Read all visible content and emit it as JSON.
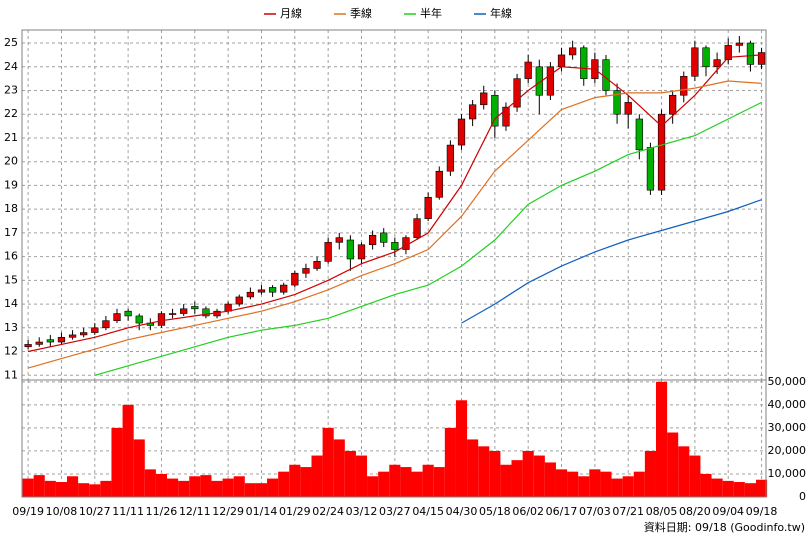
{
  "chart_data": [
    {
      "type": "candlestick",
      "x": [
        0,
        1,
        2,
        3,
        4,
        5,
        6,
        7,
        8,
        9,
        10,
        11,
        12,
        13,
        14,
        15,
        16,
        17,
        18,
        19,
        20,
        21,
        22,
        23,
        24,
        25,
        26,
        27,
        28,
        29,
        30,
        31,
        32,
        33,
        34,
        35,
        36,
        37,
        38,
        39,
        40,
        41,
        42,
        43,
        44,
        45,
        46,
        47,
        48,
        49,
        50,
        51,
        52,
        53,
        54,
        55,
        56,
        57,
        58,
        59,
        60,
        61,
        62,
        63,
        64,
        65,
        66
      ],
      "open": [
        12.2,
        12.3,
        12.5,
        12.4,
        12.6,
        12.7,
        12.8,
        13.0,
        13.3,
        13.7,
        13.5,
        13.2,
        13.1,
        13.6,
        13.6,
        13.9,
        13.8,
        13.5,
        13.7,
        14.0,
        14.3,
        14.5,
        14.7,
        14.5,
        14.8,
        15.3,
        15.5,
        15.8,
        16.6,
        16.7,
        15.9,
        16.5,
        17.0,
        16.6,
        16.3,
        16.8,
        17.6,
        18.5,
        19.6,
        20.7,
        21.8,
        22.4,
        22.8,
        21.5,
        22.3,
        23.5,
        24.0,
        22.8,
        24.0,
        24.5,
        24.8,
        23.5,
        24.3,
        23.0,
        22.0,
        21.8,
        20.6,
        18.8,
        22.0,
        22.8,
        23.6,
        24.8,
        24.0,
        24.3,
        24.9,
        25.0,
        24.1
      ],
      "high": [
        12.5,
        12.6,
        12.7,
        12.8,
        12.9,
        13.0,
        13.2,
        13.5,
        13.8,
        13.8,
        13.6,
        13.4,
        13.7,
        13.8,
        14.0,
        14.1,
        13.9,
        13.8,
        14.1,
        14.4,
        14.7,
        14.8,
        14.8,
        14.9,
        15.4,
        15.7,
        16.0,
        16.8,
        17.0,
        16.9,
        16.6,
        17.1,
        17.2,
        16.8,
        16.9,
        17.8,
        18.7,
        19.8,
        20.9,
        22.0,
        22.6,
        23.2,
        23.0,
        22.5,
        23.7,
        24.5,
        24.3,
        24.2,
        24.8,
        25.1,
        24.9,
        24.6,
        24.5,
        23.3,
        22.8,
        22.0,
        20.8,
        22.2,
        23.0,
        23.8,
        25.1,
        24.9,
        24.6,
        25.2,
        25.3,
        25.1,
        24.8
      ],
      "low": [
        12.1,
        12.2,
        12.2,
        12.3,
        12.5,
        12.6,
        12.7,
        12.9,
        13.2,
        13.3,
        12.9,
        12.9,
        13.0,
        13.4,
        13.5,
        13.6,
        13.4,
        13.4,
        13.6,
        13.9,
        14.2,
        14.4,
        14.3,
        14.4,
        14.7,
        15.1,
        15.4,
        15.7,
        16.3,
        15.4,
        15.7,
        16.3,
        16.4,
        16.0,
        16.1,
        16.7,
        17.5,
        18.4,
        19.4,
        20.5,
        21.5,
        22.2,
        21.0,
        21.3,
        22.1,
        23.3,
        22.0,
        22.6,
        23.8,
        24.3,
        23.2,
        23.3,
        22.8,
        21.6,
        21.4,
        20.1,
        18.6,
        18.6,
        21.6,
        22.5,
        23.4,
        23.6,
        23.7,
        24.1,
        24.6,
        23.8,
        23.9
      ],
      "close": [
        12.3,
        12.4,
        12.4,
        12.6,
        12.7,
        12.8,
        13.0,
        13.3,
        13.6,
        13.5,
        13.2,
        13.1,
        13.6,
        13.6,
        13.8,
        13.8,
        13.5,
        13.7,
        14.0,
        14.3,
        14.5,
        14.6,
        14.5,
        14.8,
        15.3,
        15.5,
        15.8,
        16.6,
        16.8,
        15.9,
        16.5,
        16.9,
        16.6,
        16.3,
        16.8,
        17.6,
        18.5,
        19.6,
        20.7,
        21.8,
        22.4,
        22.9,
        21.5,
        22.3,
        23.5,
        24.2,
        22.8,
        24.0,
        24.5,
        24.8,
        23.5,
        24.3,
        23.0,
        22.0,
        22.5,
        20.5,
        18.8,
        22.0,
        22.8,
        23.6,
        24.8,
        24.0,
        24.3,
        24.9,
        25.0,
        24.1,
        24.6
      ],
      "up_color": "#e00000",
      "down_color": "#00b000",
      "series": [
        {
          "name": "月線",
          "color": "#d00000",
          "x": [
            0,
            3,
            6,
            9,
            12,
            15,
            18,
            21,
            24,
            27,
            30,
            33,
            36,
            39,
            42,
            45,
            48,
            51,
            54,
            57,
            60,
            63,
            66
          ],
          "values": [
            12.0,
            12.3,
            12.6,
            13.0,
            13.3,
            13.5,
            13.7,
            14.0,
            14.4,
            15.0,
            15.7,
            16.2,
            17.0,
            19.0,
            21.8,
            23.0,
            24.0,
            23.9,
            22.8,
            21.5,
            22.8,
            24.4,
            24.5
          ]
        },
        {
          "name": "季線",
          "color": "#e07020",
          "x": [
            0,
            3,
            6,
            9,
            12,
            15,
            18,
            21,
            24,
            27,
            30,
            33,
            36,
            39,
            42,
            45,
            48,
            51,
            54,
            57,
            60,
            63,
            66
          ],
          "values": [
            11.3,
            11.7,
            12.1,
            12.5,
            12.8,
            13.1,
            13.4,
            13.7,
            14.1,
            14.6,
            15.2,
            15.7,
            16.3,
            17.7,
            19.6,
            20.9,
            22.2,
            22.7,
            22.9,
            22.9,
            23.1,
            23.4,
            23.3
          ]
        },
        {
          "name": "半年",
          "color": "#20d020",
          "x": [
            6,
            9,
            12,
            15,
            18,
            21,
            24,
            27,
            30,
            33,
            36,
            39,
            42,
            45,
            48,
            51,
            54,
            57,
            60,
            63,
            66
          ],
          "values": [
            11.0,
            11.4,
            11.8,
            12.2,
            12.6,
            12.9,
            13.1,
            13.4,
            13.9,
            14.4,
            14.8,
            15.6,
            16.7,
            18.2,
            19.0,
            19.6,
            20.3,
            20.7,
            21.1,
            21.8,
            22.5
          ]
        },
        {
          "name": "年線",
          "color": "#1060c0",
          "x": [
            39,
            42,
            45,
            48,
            51,
            54,
            57,
            60,
            63,
            66
          ],
          "values": [
            13.2,
            14.0,
            14.9,
            15.6,
            16.2,
            16.7,
            17.1,
            17.5,
            17.9,
            18.4
          ]
        }
      ],
      "xlim": [
        -0.55,
        66.4
      ],
      "ylim": [
        10.8,
        25.55
      ],
      "xticks": [
        0,
        3,
        6,
        9,
        12,
        15,
        18,
        21,
        24,
        27,
        30,
        33,
        36,
        39,
        42,
        45,
        48,
        51,
        54,
        57,
        60,
        63,
        66
      ],
      "yticks": [
        11,
        12,
        13,
        14,
        15,
        16,
        17,
        18,
        19,
        20,
        21,
        22,
        23,
        24,
        25
      ],
      "grid": true
    },
    {
      "type": "bar",
      "x": [
        0,
        1,
        2,
        3,
        4,
        5,
        6,
        7,
        8,
        9,
        10,
        11,
        12,
        13,
        14,
        15,
        16,
        17,
        18,
        19,
        20,
        21,
        22,
        23,
        24,
        25,
        26,
        27,
        28,
        29,
        30,
        31,
        32,
        33,
        34,
        35,
        36,
        37,
        38,
        39,
        40,
        41,
        42,
        43,
        44,
        45,
        46,
        47,
        48,
        49,
        50,
        51,
        52,
        53,
        54,
        55,
        56,
        57,
        58,
        59,
        60,
        61,
        62,
        63,
        64,
        65,
        66
      ],
      "values": [
        8000,
        9500,
        7000,
        6500,
        9000,
        6000,
        5500,
        7000,
        30000,
        40000,
        25000,
        12000,
        10000,
        8000,
        7000,
        9000,
        9500,
        7000,
        8000,
        9000,
        6000,
        6000,
        8000,
        11000,
        14000,
        13000,
        18000,
        30000,
        25000,
        20000,
        18000,
        9000,
        11000,
        14000,
        13000,
        11000,
        14000,
        13000,
        30000,
        42000,
        25000,
        22000,
        20000,
        14000,
        16000,
        20000,
        18000,
        15000,
        12000,
        11000,
        9000,
        12000,
        11000,
        8000,
        9000,
        11000,
        20000,
        50000,
        28000,
        22000,
        18000,
        10000,
        8000,
        7000,
        6500,
        6000,
        7500
      ],
      "color": "#ff0000",
      "xlim": [
        -0.55,
        66.4
      ],
      "ylim": [
        0,
        50800
      ],
      "yticks": [
        0,
        {
          "value": 10000,
          "label": "10,000"
        },
        {
          "value": 20000,
          "label": "20,000"
        },
        {
          "value": 30000,
          "label": "30,000"
        },
        {
          "value": 40000,
          "label": "40,000"
        },
        {
          "value": 50000,
          "label": "50,000"
        }
      ],
      "xticks": [
        {
          "value": 0,
          "label": "09/19"
        },
        {
          "value": 3,
          "label": "10/08"
        },
        {
          "value": 6,
          "label": "10/27"
        },
        {
          "value": 9,
          "label": "11/11"
        },
        {
          "value": 12,
          "label": "11/26"
        },
        {
          "value": 15,
          "label": "12/11"
        },
        {
          "value": 18,
          "label": "12/29"
        },
        {
          "value": 21,
          "label": "01/14"
        },
        {
          "value": 24,
          "label": "01/29"
        },
        {
          "value": 27,
          "label": "02/24"
        },
        {
          "value": 30,
          "label": "03/12"
        },
        {
          "value": 33,
          "label": "03/27"
        },
        {
          "value": 36,
          "label": "04/15"
        },
        {
          "value": 39,
          "label": "04/30"
        },
        {
          "value": 42,
          "label": "05/18"
        },
        {
          "value": 45,
          "label": "06/02"
        },
        {
          "value": 48,
          "label": "06/17"
        },
        {
          "value": 51,
          "label": "07/03"
        },
        {
          "value": 54,
          "label": "07/21"
        },
        {
          "value": 57,
          "label": "08/05"
        },
        {
          "value": 60,
          "label": "08/20"
        },
        {
          "value": 63,
          "label": "09/04"
        },
        {
          "value": 66,
          "label": "09/18"
        }
      ],
      "grid": true
    }
  ],
  "footer": "資料日期: 09/18 (Goodinfo.tw)"
}
